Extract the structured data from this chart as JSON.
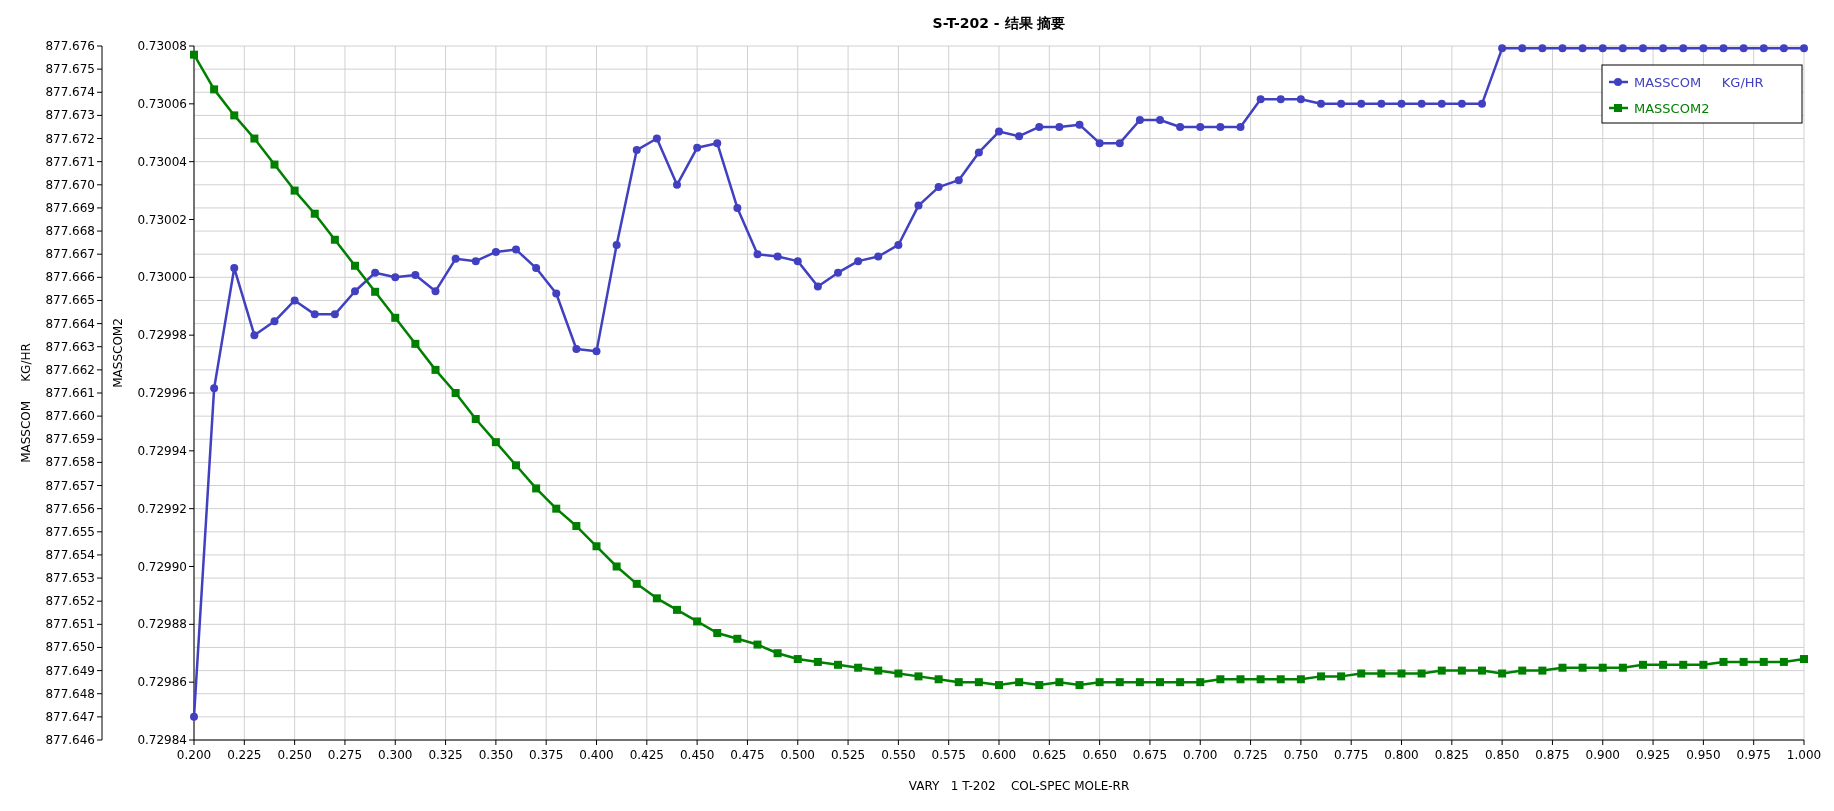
{
  "chart_data": {
    "type": "line",
    "title": "S-T-202 - 结果 摘要",
    "xlabel": "VARY   1 T-202    COL-SPEC MOLE-RR",
    "ylabel": "MASSCOM     KG/HR",
    "y2label": "MASSCOM2",
    "x": [
      0.2,
      0.21,
      0.22,
      0.23,
      0.24,
      0.25,
      0.26,
      0.27,
      0.28,
      0.29,
      0.3,
      0.31,
      0.32,
      0.33,
      0.34,
      0.35,
      0.36,
      0.37,
      0.38,
      0.39,
      0.4,
      0.41,
      0.42,
      0.43,
      0.44,
      0.45,
      0.46,
      0.47,
      0.48,
      0.49,
      0.5,
      0.51,
      0.52,
      0.53,
      0.54,
      0.55,
      0.56,
      0.57,
      0.58,
      0.59,
      0.6,
      0.61,
      0.62,
      0.63,
      0.64,
      0.65,
      0.66,
      0.67,
      0.68,
      0.69,
      0.7,
      0.71,
      0.72,
      0.73,
      0.74,
      0.75,
      0.76,
      0.77,
      0.78,
      0.79,
      0.8,
      0.81,
      0.82,
      0.83,
      0.84,
      0.85,
      0.86,
      0.87,
      0.88,
      0.89,
      0.9,
      0.91,
      0.92,
      0.93,
      0.94,
      0.95,
      0.96,
      0.97,
      0.98,
      0.99,
      1.0
    ],
    "series": [
      {
        "name": "MASSCOM     KG/HR",
        "color": "#4040c0",
        "marker": "circle",
        "values": [
          877.647,
          877.6612,
          877.6664,
          877.6635,
          877.6641,
          877.665,
          877.6644,
          877.6644,
          877.6654,
          877.6662,
          877.666,
          877.6661,
          877.6654,
          877.6668,
          877.6667,
          877.6671,
          877.6672,
          877.6664,
          877.6653,
          877.6629,
          877.6628,
          877.6674,
          877.6715,
          877.672,
          877.67,
          877.6716,
          877.6718,
          877.669,
          877.667,
          877.6669,
          877.6667,
          877.6656,
          877.6662,
          877.6667,
          877.6669,
          877.6674,
          877.6691,
          877.6699,
          877.6702,
          877.6714,
          877.6723,
          877.6721,
          877.6725,
          877.6725,
          877.6726,
          877.6718,
          877.6718,
          877.6728,
          877.6728,
          877.6725,
          877.6725,
          877.6725,
          877.6725,
          877.6737,
          877.6737,
          877.6737,
          877.6735,
          877.6735,
          877.6735,
          877.6735,
          877.6735,
          877.6735,
          877.6735,
          877.6735,
          877.6735,
          877.6759,
          877.6759,
          877.6759,
          877.6759,
          877.6759,
          877.6759,
          877.6759,
          877.6759,
          877.6759,
          877.6759,
          877.6759,
          877.6759,
          877.6759,
          877.6759,
          877.6759,
          877.6759
        ]
      },
      {
        "name": "MASSCOM2",
        "color": "#008000",
        "marker": "square",
        "axis": "y2",
        "values": [
          0.730077,
          0.730065,
          0.730056,
          0.730048,
          0.730039,
          0.73003,
          0.730022,
          0.730013,
          0.730004,
          0.729995,
          0.729986,
          0.729977,
          0.729968,
          0.72996,
          0.729951,
          0.729943,
          0.729935,
          0.729927,
          0.72992,
          0.729914,
          0.729907,
          0.7299,
          0.729894,
          0.729889,
          0.729885,
          0.729881,
          0.729877,
          0.729875,
          0.729873,
          0.72987,
          0.729868,
          0.729867,
          0.729866,
          0.729865,
          0.729864,
          0.729863,
          0.729862,
          0.729861,
          0.72986,
          0.72986,
          0.729859,
          0.72986,
          0.729859,
          0.72986,
          0.729859,
          0.72986,
          0.72986,
          0.72986,
          0.72986,
          0.72986,
          0.72986,
          0.729861,
          0.729861,
          0.729861,
          0.729861,
          0.729861,
          0.729862,
          0.729862,
          0.729863,
          0.729863,
          0.729863,
          0.729863,
          0.729864,
          0.729864,
          0.729864,
          0.729863,
          0.729864,
          0.729864,
          0.729865,
          0.729865,
          0.729865,
          0.729865,
          0.729866,
          0.729866,
          0.729866,
          0.729866,
          0.729867,
          0.729867,
          0.729867,
          0.729867,
          0.729868
        ]
      }
    ],
    "xlim": [
      0.2,
      1.0
    ],
    "xticks": [
      {
        "value": 0.2,
        "label": "0.200"
      },
      0.225,
      {
        "value": 0.25,
        "label": "0.250"
      },
      0.275,
      {
        "value": 0.3,
        "label": "0.300"
      },
      0.325,
      {
        "value": 0.35,
        "label": "0.350"
      },
      0.375,
      {
        "value": 0.4,
        "label": "0.400"
      },
      0.425,
      {
        "value": 0.45,
        "label": "0.450"
      },
      0.475,
      {
        "value": 0.5,
        "label": "0.500"
      },
      0.525,
      {
        "value": 0.55,
        "label": "0.550"
      },
      0.575,
      {
        "value": 0.6,
        "label": "0.600"
      },
      0.625,
      {
        "value": 0.65,
        "label": "0.650"
      },
      0.675,
      {
        "value": 0.7,
        "label": "0.700"
      },
      0.725,
      {
        "value": 0.75,
        "label": "0.750"
      },
      0.775,
      {
        "value": 0.8,
        "label": "0.800"
      },
      0.825,
      {
        "value": 0.85,
        "label": "0.850"
      },
      0.875,
      {
        "value": 0.9,
        "label": "0.900"
      },
      0.925,
      {
        "value": 0.95,
        "label": "0.950"
      },
      0.975,
      {
        "value": 1.0,
        "label": "1.000"
      }
    ],
    "ylim": [
      877.646,
      877.676
    ],
    "yticks": [
      877.646,
      877.647,
      877.648,
      877.649,
      {
        "value": 877.65,
        "label": "877.650"
      },
      877.651,
      877.652,
      877.653,
      877.654,
      877.655,
      877.656,
      877.657,
      877.658,
      877.659,
      {
        "value": 877.66,
        "label": "877.660"
      },
      877.661,
      877.662,
      877.663,
      877.664,
      877.665,
      877.666,
      877.667,
      877.668,
      877.669,
      {
        "value": 877.67,
        "label": "877.670"
      },
      877.671,
      877.672,
      877.673,
      877.674,
      877.675,
      877.676
    ],
    "y2lim": [
      0.72984,
      0.73008
    ],
    "y2ticks": [
      0.72984,
      0.72986,
      0.72988,
      {
        "value": 0.7299,
        "label": "0.72990"
      },
      0.72992,
      0.72994,
      0.72996,
      0.72998,
      {
        "value": 0.73,
        "label": "0.73000"
      },
      0.73002,
      0.73004,
      0.73006,
      0.73008
    ],
    "grid": true,
    "legend": "top right",
    "line_style": "solid"
  }
}
